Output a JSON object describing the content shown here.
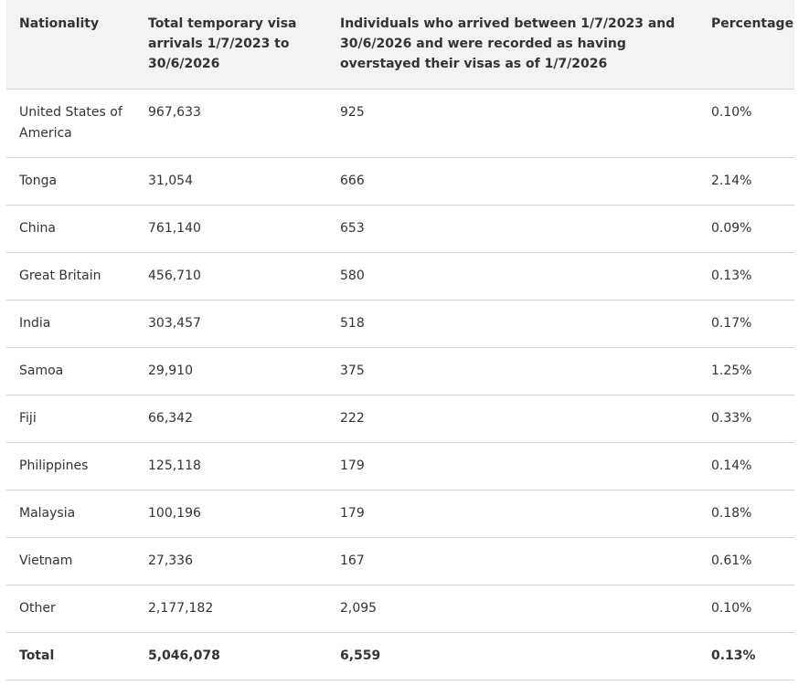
{
  "table": {
    "headers": [
      "Nationality",
      "Total temporary visa arrivals 1/7/2023 to 30/6/2026",
      "Individuals who arrived between 1/7/2023 and 30/6/2026 and were recorded as having overstayed their visas as of 1/7/2026",
      "Percentage"
    ],
    "rows": [
      [
        "United States of America",
        "967,633",
        "925",
        "0.10%"
      ],
      [
        "Tonga",
        "31,054",
        "666",
        "2.14%"
      ],
      [
        "China",
        "761,140",
        "653",
        "0.09%"
      ],
      [
        "Great Britain",
        "456,710",
        "580",
        "0.13%"
      ],
      [
        "India",
        "303,457",
        "518",
        "0.17%"
      ],
      [
        "Samoa",
        "29,910",
        "375",
        "1.25%"
      ],
      [
        "Fiji",
        "66,342",
        "222",
        "0.33%"
      ],
      [
        "Philippines",
        "125,118",
        "179",
        "0.14%"
      ],
      [
        "Malaysia",
        "100,196",
        "179",
        "0.18%"
      ],
      [
        "Vietnam",
        "27,336",
        "167",
        "0.61%"
      ],
      [
        "Other",
        "2,177,182",
        "2,095",
        "0.10%"
      ]
    ],
    "total": [
      "Total",
      "5,046,078",
      "6,559",
      "0.13%"
    ]
  }
}
